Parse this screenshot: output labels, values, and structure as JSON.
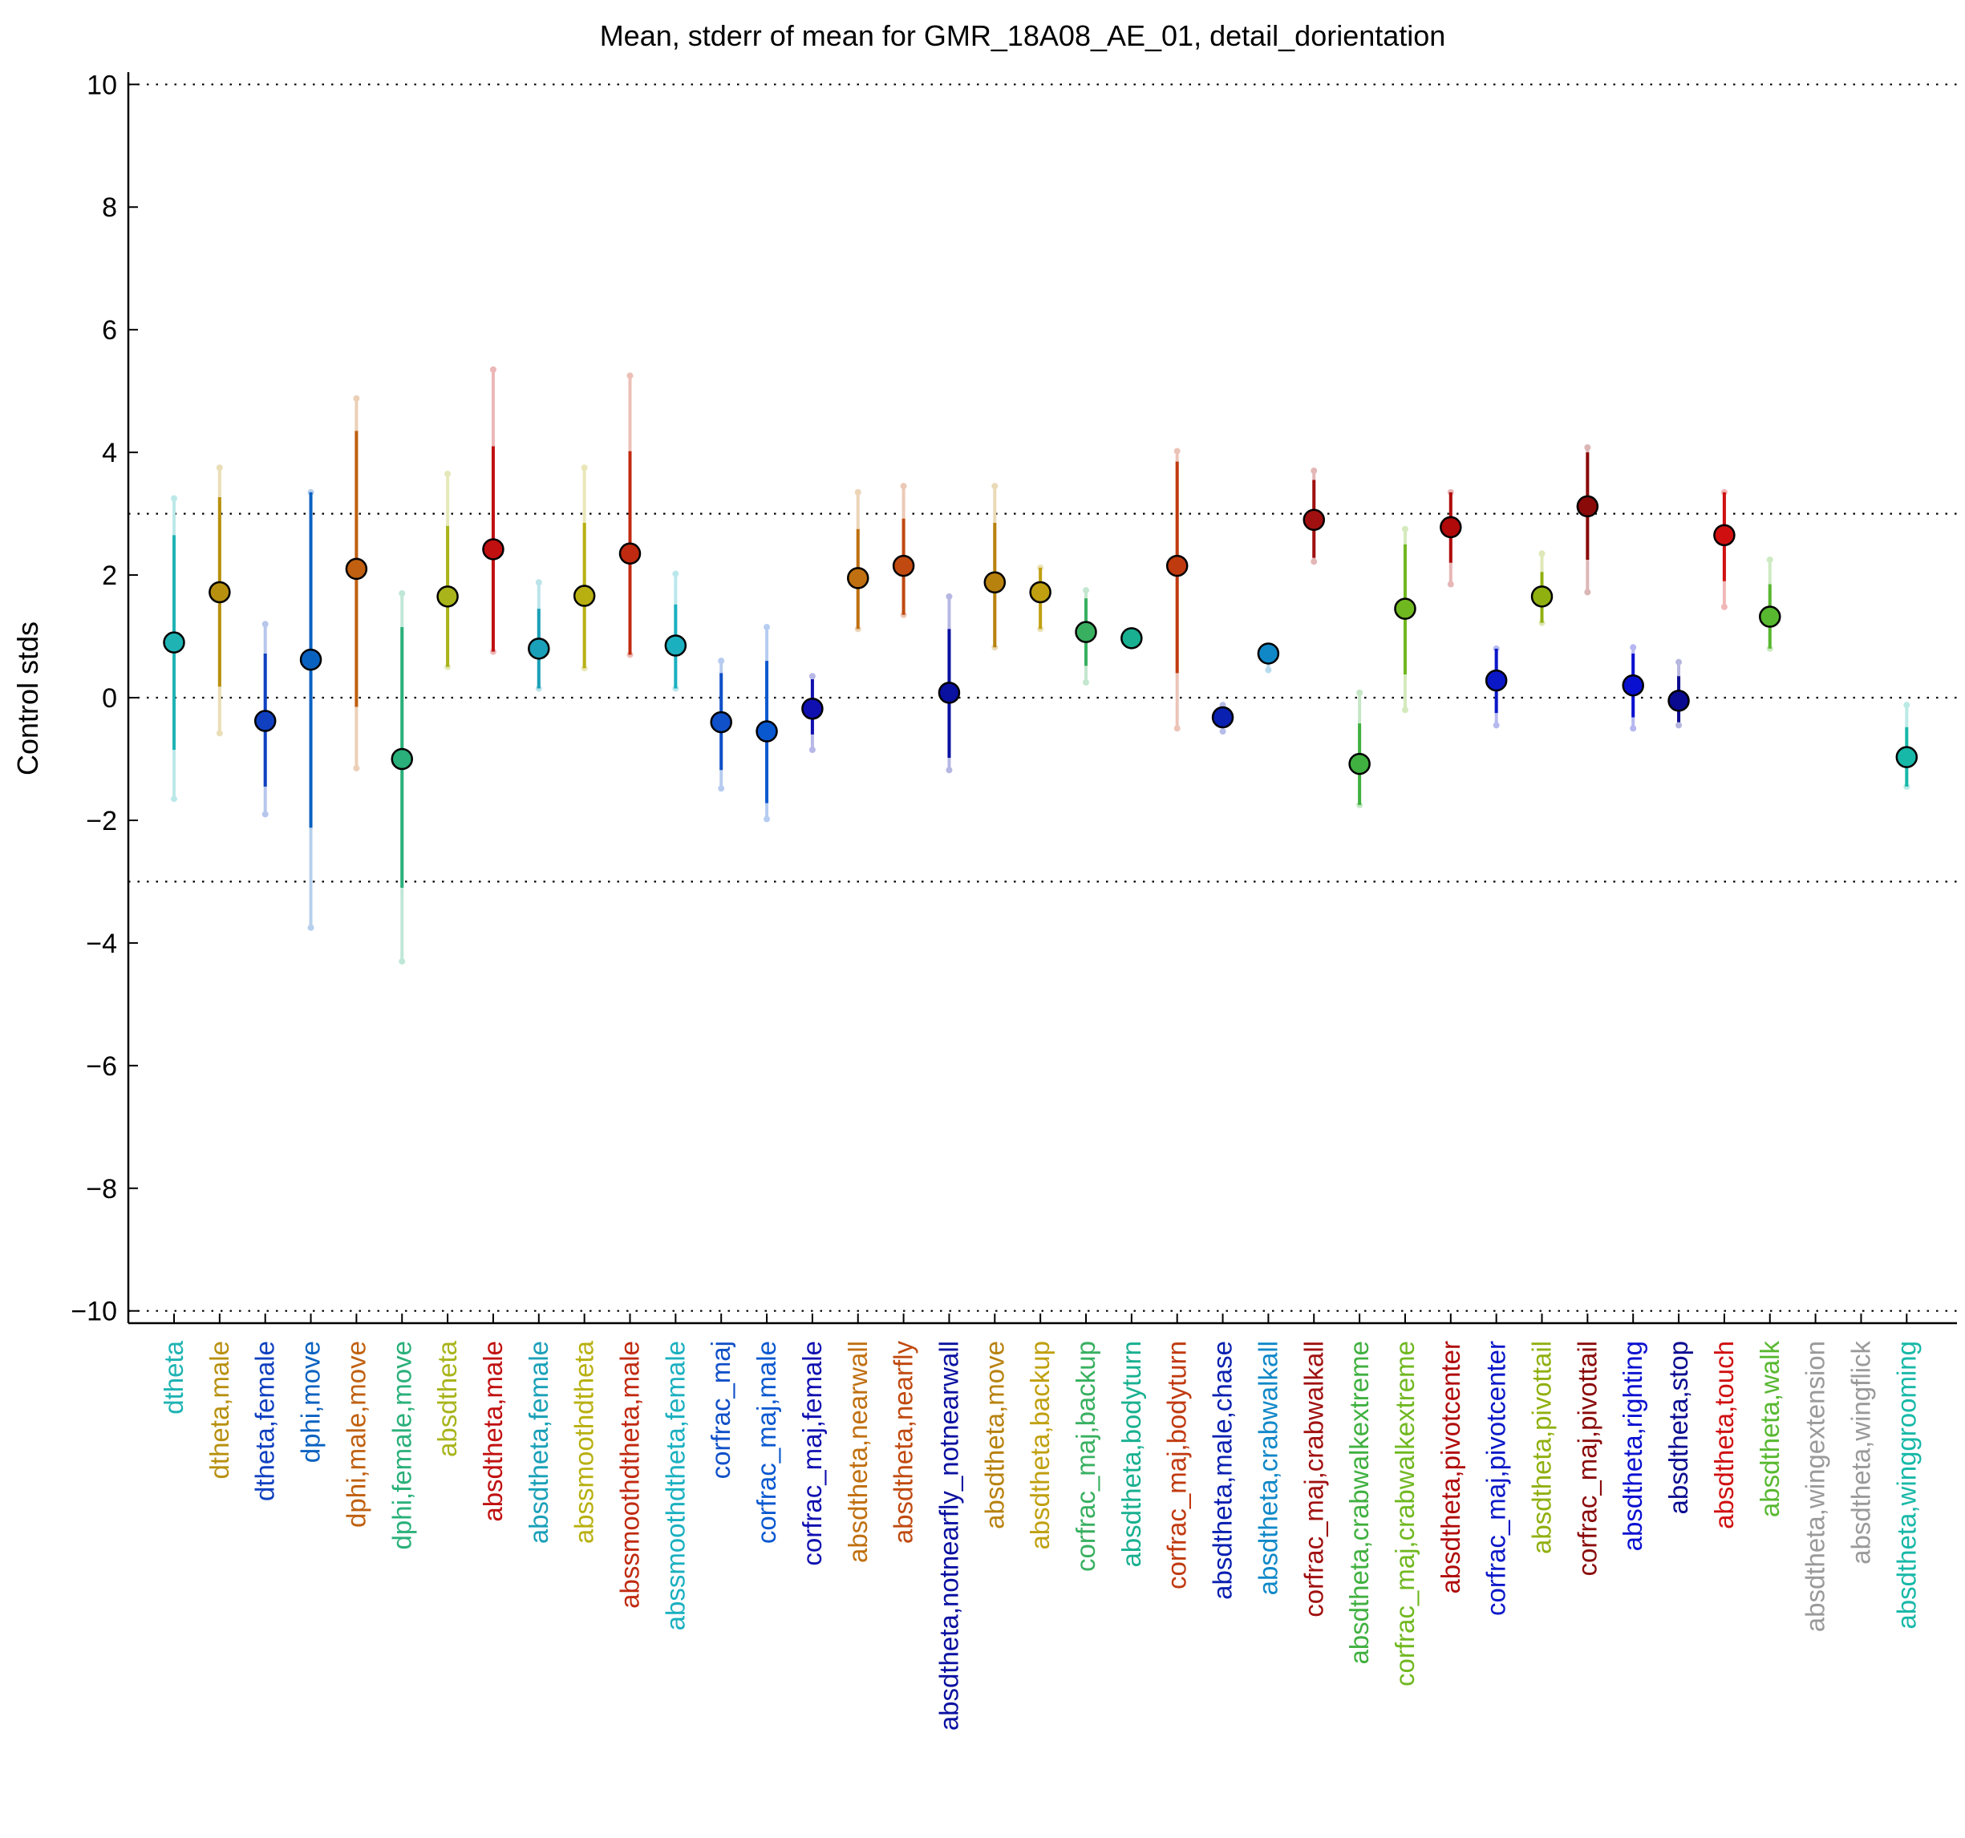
{
  "chart_data": {
    "type": "scatter",
    "title": "Mean, stderr of mean for GMR_18A08_AE_01, detail_dorientation",
    "xlabel": "",
    "ylabel": "Control stds",
    "ylim": [
      -10.2,
      10.2
    ],
    "yticks": [
      -10,
      -8,
      -6,
      -4,
      -2,
      0,
      2,
      4,
      6,
      8,
      10
    ],
    "ytick_labels": [
      "−10",
      "−8",
      "−6",
      "−4",
      "−2",
      "0",
      "2",
      "4",
      "6",
      "8",
      "10"
    ],
    "reference_lines": [
      10,
      3,
      0,
      -3,
      -10
    ],
    "grid": false,
    "points": [
      {
        "category": "dtheta",
        "mean": 0.9,
        "se_low": -0.85,
        "se_high": 2.65,
        "lo": -1.65,
        "hi": 3.25,
        "color": "#1fb3b3"
      },
      {
        "category": "dtheta,male",
        "mean": 1.72,
        "se_low": 0.18,
        "se_high": 3.27,
        "lo": -0.58,
        "hi": 3.75,
        "color": "#b8900f"
      },
      {
        "category": "dtheta,female",
        "mean": -0.38,
        "se_low": -1.45,
        "se_high": 0.72,
        "lo": -1.9,
        "hi": 1.2,
        "color": "#1040c0"
      },
      {
        "category": "dphi,move",
        "mean": 0.62,
        "se_low": -2.12,
        "se_high": 3.35,
        "lo": -3.75,
        "hi": 3.35,
        "color": "#0a62c0"
      },
      {
        "category": "dphi,male,move",
        "mean": 2.1,
        "se_low": -0.15,
        "se_high": 4.35,
        "lo": -1.15,
        "hi": 4.88,
        "color": "#c06010"
      },
      {
        "category": "dphi,female,move",
        "mean": -1.0,
        "se_low": -3.1,
        "se_high": 1.15,
        "lo": -4.3,
        "hi": 1.7,
        "color": "#2ab07a"
      },
      {
        "category": "absdtheta",
        "mean": 1.65,
        "se_low": 0.5,
        "se_high": 2.8,
        "lo": 0.5,
        "hi": 3.65,
        "color": "#a8b41a"
      },
      {
        "category": "absdtheta,male",
        "mean": 2.42,
        "se_low": 0.75,
        "se_high": 4.1,
        "lo": 0.75,
        "hi": 5.35,
        "color": "#c01010"
      },
      {
        "category": "absdtheta,female",
        "mean": 0.8,
        "se_low": 0.15,
        "se_high": 1.45,
        "lo": 0.15,
        "hi": 1.88,
        "color": "#1aa0b8"
      },
      {
        "category": "abssmoothdtheta",
        "mean": 1.66,
        "se_low": 0.48,
        "se_high": 2.85,
        "lo": 0.48,
        "hi": 3.75,
        "color": "#b8b010"
      },
      {
        "category": "abssmoothdtheta,male",
        "mean": 2.35,
        "se_low": 0.7,
        "se_high": 4.02,
        "lo": 0.7,
        "hi": 5.25,
        "color": "#c02a10"
      },
      {
        "category": "abssmoothdtheta,female",
        "mean": 0.85,
        "se_low": 0.15,
        "se_high": 1.52,
        "lo": 0.15,
        "hi": 2.02,
        "color": "#1ab0c0"
      },
      {
        "category": "corfrac_maj",
        "mean": -0.4,
        "se_low": -1.18,
        "se_high": 0.4,
        "lo": -1.48,
        "hi": 0.6,
        "color": "#1050c8"
      },
      {
        "category": "corfrac_maj,male",
        "mean": -0.55,
        "se_low": -1.72,
        "se_high": 0.6,
        "lo": -1.98,
        "hi": 1.15,
        "color": "#0a58d0"
      },
      {
        "category": "corfrac_maj,female",
        "mean": -0.18,
        "se_low": -0.6,
        "se_high": 0.3,
        "lo": -0.85,
        "hi": 0.35,
        "color": "#1010b0"
      },
      {
        "category": "absdtheta,nearwall",
        "mean": 1.95,
        "se_low": 1.12,
        "se_high": 2.75,
        "lo": 1.12,
        "hi": 3.35,
        "color": "#c07010"
      },
      {
        "category": "absdtheta,nearfly",
        "mean": 2.15,
        "se_low": 1.35,
        "se_high": 2.92,
        "lo": 1.35,
        "hi": 3.45,
        "color": "#c04a10"
      },
      {
        "category": "absdtheta,notnearfly_notnearwall",
        "mean": 0.08,
        "se_low": -0.98,
        "se_high": 1.12,
        "lo": -1.18,
        "hi": 1.65,
        "color": "#0a10a0"
      },
      {
        "category": "absdtheta,move",
        "mean": 1.88,
        "se_low": 0.82,
        "se_high": 2.85,
        "lo": 0.82,
        "hi": 3.45,
        "color": "#b8820f"
      },
      {
        "category": "absdtheta,backup",
        "mean": 1.72,
        "se_low": 1.12,
        "se_high": 2.12,
        "lo": 1.12,
        "hi": 2.12,
        "color": "#c0a010"
      },
      {
        "category": "corfrac_maj,backup",
        "mean": 1.07,
        "se_low": 0.52,
        "se_high": 1.62,
        "lo": 0.25,
        "hi": 1.75,
        "color": "#38b060"
      },
      {
        "category": "absdtheta,bodyturn",
        "mean": 0.97,
        "se_low": 0.97,
        "se_high": 0.97,
        "lo": 0.97,
        "hi": 0.97,
        "color": "#18b090"
      },
      {
        "category": "corfrac_maj,bodyturn",
        "mean": 2.15,
        "se_low": 0.4,
        "se_high": 3.85,
        "lo": -0.5,
        "hi": 4.02,
        "color": "#c03a10"
      },
      {
        "category": "absdtheta,male,chase",
        "mean": -0.32,
        "se_low": -0.48,
        "se_high": -0.18,
        "lo": -0.55,
        "hi": -0.12,
        "color": "#0a20b0"
      },
      {
        "category": "absdtheta,crabwalkall",
        "mean": 0.72,
        "se_low": 0.72,
        "se_high": 0.72,
        "lo": 0.45,
        "hi": 0.72,
        "color": "#1088c8"
      },
      {
        "category": "corfrac_maj,crabwalkall",
        "mean": 2.9,
        "se_low": 2.28,
        "se_high": 3.55,
        "lo": 2.22,
        "hi": 3.7,
        "color": "#a01010"
      },
      {
        "category": "absdtheta,crabwalkextreme",
        "mean": -1.08,
        "se_low": -1.75,
        "se_high": -0.42,
        "lo": -1.75,
        "hi": 0.08,
        "color": "#40b040"
      },
      {
        "category": "corfrac_maj,crabwalkextreme",
        "mean": 1.45,
        "se_low": 0.38,
        "se_high": 2.5,
        "lo": -0.2,
        "hi": 2.75,
        "color": "#70b820"
      },
      {
        "category": "absdtheta,pivotcenter",
        "mean": 2.78,
        "se_low": 2.2,
        "se_high": 3.35,
        "lo": 1.85,
        "hi": 3.35,
        "color": "#b00a0a"
      },
      {
        "category": "corfrac_maj,pivotcenter",
        "mean": 0.28,
        "se_low": -0.25,
        "se_high": 0.8,
        "lo": -0.45,
        "hi": 0.8,
        "color": "#0a18c8"
      },
      {
        "category": "absdtheta,pivottail",
        "mean": 1.65,
        "se_low": 1.22,
        "se_high": 2.05,
        "lo": 1.22,
        "hi": 2.35,
        "color": "#90b010"
      },
      {
        "category": "corfrac_maj,pivottail",
        "mean": 3.12,
        "se_low": 2.25,
        "se_high": 4.0,
        "lo": 1.72,
        "hi": 4.08,
        "color": "#8a0a0a"
      },
      {
        "category": "absdtheta,righting",
        "mean": 0.2,
        "se_low": -0.32,
        "se_high": 0.72,
        "lo": -0.5,
        "hi": 0.82,
        "color": "#0a10d0"
      },
      {
        "category": "absdtheta,stop",
        "mean": -0.05,
        "se_low": -0.4,
        "se_high": 0.35,
        "lo": -0.45,
        "hi": 0.58,
        "color": "#0a0a90"
      },
      {
        "category": "absdtheta,touch",
        "mean": 2.65,
        "se_low": 1.9,
        "se_high": 3.35,
        "lo": 1.48,
        "hi": 3.35,
        "color": "#d01010"
      },
      {
        "category": "absdtheta,walk",
        "mean": 1.32,
        "se_low": 0.8,
        "se_high": 1.85,
        "lo": 0.8,
        "hi": 2.25,
        "color": "#58b830"
      },
      {
        "category": "absdtheta,wingextension",
        "mean": null,
        "color": "#9a9a9a"
      },
      {
        "category": "absdtheta,wingflick",
        "mean": null,
        "color": "#9a9a9a"
      },
      {
        "category": "absdtheta,winggrooming",
        "mean": -0.97,
        "se_low": -1.45,
        "se_high": -0.48,
        "lo": -1.45,
        "hi": -0.12,
        "color": "#18b8a8"
      }
    ]
  }
}
